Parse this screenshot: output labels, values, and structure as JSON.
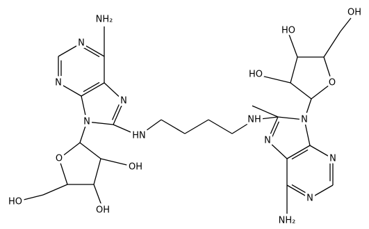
{
  "labels": [
    "NH₂",
    "N",
    "N",
    "N",
    "N",
    "HN",
    "O",
    "OH",
    "OH",
    "HO",
    "NH",
    "N",
    "N",
    "N",
    "N",
    "NH₂",
    "O",
    "HO",
    "HO",
    "OH"
  ]
}
